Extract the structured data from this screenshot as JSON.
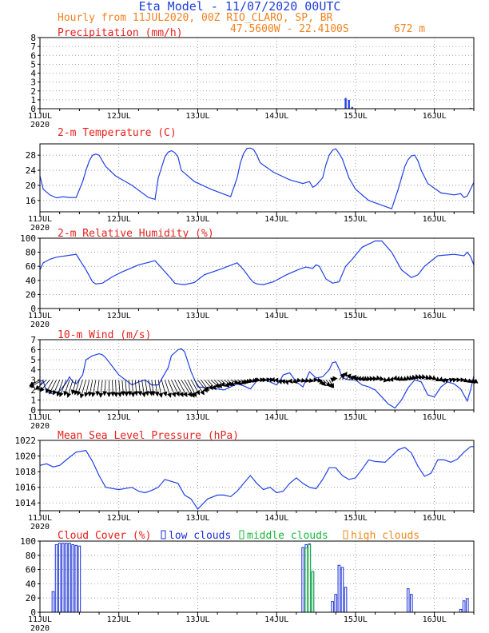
{
  "header": {
    "title": "Eta Model - 11/07/2020 00UTC",
    "subtitle": "Hourly from 11JUL2020, 00Z  RIO_CLARO, SP, BR",
    "coords": "47.5600W - 22.4100S",
    "elevation": "672  m"
  },
  "colors": {
    "title": "#1f3fd6",
    "header": "#f0821e",
    "panel_title": "#e8201c",
    "line": "#2040e8",
    "low": "#1a2fd8",
    "middle": "#18b83a",
    "high": "#ef8a20"
  },
  "x_axis": {
    "range_hours": [
      0,
      132
    ],
    "tick_hours": [
      0,
      24,
      48,
      72,
      96,
      120
    ],
    "tick_labels": [
      "11JUL",
      "12JUL",
      "13JUL",
      "14JUL",
      "15JUL",
      "16JUL"
    ],
    "year_label": "2020"
  },
  "chart_data": [
    {
      "type": "bar",
      "title": "Precipitation (mm/h)",
      "ylim": [
        0,
        8
      ],
      "yticks": [
        "0",
        "1",
        "2",
        "3",
        "4",
        "5",
        "6",
        "7",
        "8"
      ],
      "x_hours": [
        93,
        94,
        95,
        131
      ],
      "values": [
        1.2,
        1.0,
        0.2,
        0.1
      ]
    },
    {
      "type": "line",
      "title": "2-m Temperature (C)",
      "ylim": [
        13,
        31
      ],
      "yticks": [
        "16",
        "20",
        "24",
        "28"
      ],
      "x_hours": [
        0,
        1,
        3,
        5,
        7,
        9,
        11,
        13,
        14,
        15,
        16,
        17,
        18,
        20,
        23,
        28,
        33,
        35,
        36,
        38,
        39,
        40,
        41,
        42,
        43,
        47,
        52,
        58,
        60,
        61,
        62,
        63,
        64,
        65,
        66,
        67,
        71,
        76,
        80,
        82,
        83,
        84,
        86,
        87,
        88,
        89,
        90,
        91,
        92,
        94,
        96,
        100,
        107,
        109,
        111,
        112,
        113,
        114,
        115,
        116,
        118,
        122,
        126,
        128,
        129,
        130,
        131,
        132
      ],
      "values": [
        22.5,
        19,
        17.5,
        16.7,
        17,
        16.8,
        16.8,
        21,
        24,
        26.5,
        28,
        28.3,
        28,
        25,
        22.5,
        20,
        16.8,
        16.3,
        22,
        27.5,
        28.8,
        29.2,
        28.7,
        27.5,
        24,
        21,
        19,
        17,
        22,
        26,
        28.5,
        29.8,
        29.9,
        29.5,
        28,
        26,
        23.5,
        21.5,
        20.5,
        21,
        19.5,
        20,
        22,
        25.5,
        28,
        29.3,
        29.7,
        28.5,
        27,
        22,
        19,
        16,
        13.8,
        19,
        25,
        26.8,
        27.8,
        28,
        26.5,
        24,
        20.5,
        18,
        17.5,
        17.8,
        16.8,
        17.2,
        19,
        20.8
      ]
    },
    {
      "type": "line",
      "title": "2-m Relative Humidity (%)",
      "ylim": [
        0,
        100
      ],
      "yticks": [
        "0",
        "20",
        "40",
        "60",
        "80",
        "100"
      ],
      "x_hours": [
        0,
        1,
        3,
        5,
        8,
        11,
        14,
        16,
        17,
        19,
        22,
        25,
        30,
        35,
        40,
        41,
        42,
        44,
        47,
        50,
        55,
        60,
        62,
        64,
        65,
        66,
        68,
        71,
        75,
        79,
        81,
        83,
        84,
        85,
        87,
        89,
        91,
        93,
        95,
        98,
        102,
        104,
        107,
        110,
        113,
        115,
        117,
        121,
        126,
        129,
        130,
        131,
        132
      ],
      "values": [
        55,
        65,
        70,
        73,
        75,
        77,
        55,
        38,
        35,
        36,
        45,
        52,
        62,
        68,
        42,
        36,
        35,
        34,
        37,
        48,
        56,
        65,
        55,
        42,
        37,
        35,
        34,
        38,
        48,
        56,
        59,
        57,
        62,
        60,
        42,
        36,
        38,
        60,
        70,
        87,
        96,
        96,
        80,
        55,
        44,
        48,
        60,
        75,
        77,
        75,
        80,
        74,
        62
      ]
    },
    {
      "type": "line",
      "title": "10-m Wind (m/s)",
      "ylim": [
        0,
        7
      ],
      "yticks": [
        "0",
        "1",
        "2",
        "3",
        "4",
        "5",
        "6",
        "7"
      ],
      "x_hours": [
        0,
        1,
        2,
        4,
        6,
        8,
        9,
        10,
        11,
        13,
        14,
        16,
        18,
        19,
        20,
        24,
        28,
        30,
        32,
        34,
        36,
        39,
        40,
        42,
        43,
        44,
        46,
        48,
        52,
        56,
        60,
        62,
        64,
        66,
        68,
        70,
        72,
        73,
        74,
        76,
        78,
        80,
        82,
        84,
        86,
        88,
        89,
        90,
        91,
        92,
        94,
        96,
        98,
        100,
        102,
        104,
        106,
        108,
        110,
        112,
        114,
        116,
        118,
        120,
        122,
        124,
        126,
        128,
        130,
        131,
        132
      ],
      "values": [
        2.5,
        2.9,
        1.8,
        1.6,
        1.9,
        2.7,
        3.3,
        2.8,
        2.6,
        3.5,
        5.0,
        5.4,
        5.6,
        5.5,
        5.2,
        3.5,
        2.5,
        2.8,
        3.0,
        2.5,
        2.5,
        4.2,
        5.4,
        6.0,
        6.1,
        5.8,
        3.8,
        2.3,
        2.2,
        2.0,
        2.6,
        2.4,
        2.1,
        2.9,
        3.0,
        2.8,
        2.5,
        2.9,
        3.5,
        3.7,
        2.8,
        2.3,
        3.8,
        3.2,
        3.3,
        4.0,
        4.7,
        4.8,
        4.1,
        3.2,
        3.0,
        3.0,
        2.5,
        2.3,
        2.0,
        1.3,
        0.6,
        0.2,
        1.0,
        2.2,
        3.0,
        2.8,
        1.5,
        1.3,
        2.3,
        2.8,
        2.6,
        2.1,
        0.9,
        2.0,
        3.4
      ],
      "barb_hours": [
        0,
        1,
        2,
        3,
        4,
        5,
        6,
        7,
        8,
        9,
        10,
        11,
        12,
        13,
        14,
        15,
        16,
        17,
        18,
        19,
        20,
        21,
        22,
        23,
        24,
        25,
        26,
        27,
        28,
        29,
        30,
        31,
        32,
        33,
        34,
        35,
        36,
        37,
        38,
        39,
        40,
        41,
        42,
        43,
        44,
        45,
        46,
        47,
        48,
        49,
        50,
        51,
        52,
        53,
        54,
        55,
        56,
        57,
        58,
        59,
        60,
        61,
        62,
        63,
        64,
        65,
        66,
        67,
        68,
        69,
        70,
        71,
        72,
        73,
        74,
        75,
        76,
        77,
        78,
        79,
        80,
        81,
        82,
        83,
        84,
        85,
        86,
        87,
        88,
        89,
        90,
        91,
        92,
        93,
        94,
        95,
        96,
        97,
        98,
        99,
        100,
        101,
        102,
        103,
        104,
        105,
        106,
        107,
        108,
        109,
        110,
        111,
        112,
        113,
        114,
        115,
        116,
        117,
        118,
        119,
        120,
        121,
        122,
        123,
        124,
        125,
        126,
        127,
        128,
        129,
        130,
        131,
        132
      ],
      "barb_u": [
        -1.6,
        -2.1,
        -1.7,
        -1.5,
        -1.1,
        -1.1,
        -1.0,
        -0.9,
        -1.0,
        -0.8,
        -0.8,
        -0.6,
        -0.7,
        -0.8,
        -0.8,
        -0.6,
        -0.5,
        -0.5,
        -0.3,
        -0.3,
        -0.2,
        -0.0,
        0.1,
        0.1,
        0.2,
        0.2,
        0.2,
        0.2,
        0.2,
        0.2,
        0.3,
        0.4,
        0.4,
        0.5,
        0.3,
        0.4,
        0.5,
        0.7,
        0.9,
        1.1,
        1.2,
        1.3,
        1.4,
        1.6,
        1.5,
        1.3,
        1.3,
        1.5,
        1.5,
        1.2,
        1.3,
        1.3,
        1.3,
        1.2,
        1.2,
        1.3,
        1.2,
        1.1,
        1.2,
        1.2,
        1.3,
        1.1,
        1.0,
        0.9,
        1.0,
        0.8,
        0.5,
        0.6,
        0.5,
        0.6,
        0.6,
        0.2,
        0.2,
        0.2,
        0.2,
        0.2,
        0.4,
        0.6,
        0.7,
        0.9,
        1.0,
        1.1,
        1.3,
        1.4,
        1.2,
        1.0,
        1.2,
        1.0,
        0.7,
        0.0,
        -0.4,
        0.8,
        0.7,
        0.8,
        0.8,
        0.6,
        0.4,
        0.3,
        0.2,
        0.0,
        -0.2,
        -0.3,
        -0.3,
        -0.2,
        -0.2,
        -0.1,
        0.1,
        0.2,
        0.2,
        0.1,
        0.0,
        -0.0,
        -0.1,
        -0.2,
        -0.3,
        -0.3,
        -0.3,
        -0.3,
        -0.2,
        -0.2,
        -0.1,
        0.0,
        0.1,
        0.2,
        0.2,
        0.4,
        0.4,
        0.5,
        0.6,
        0.6,
        0.7,
        0.7,
        0.6
      ],
      "barb_v": [
        -0.9,
        -1.1,
        -1.5,
        -1.8,
        -2.0,
        -2.2,
        -2.3,
        -2.5,
        -2.6,
        -2.4,
        -2.7,
        -2.2,
        -2.3,
        -2.4,
        -2.8,
        -2.6,
        -2.5,
        -2.6,
        -2.4,
        -2.7,
        -2.4,
        -2.6,
        -2.5,
        -2.6,
        -2.6,
        -2.4,
        -2.5,
        -2.4,
        -2.6,
        -2.4,
        -2.4,
        -2.6,
        -2.4,
        -2.4,
        -2.4,
        -2.5,
        -2.7,
        -2.5,
        -2.7,
        -2.6,
        -2.5,
        -2.6,
        -2.6,
        -2.6,
        -2.7,
        -2.6,
        -2.3,
        -2.3,
        -1.9,
        -1.7,
        -1.5,
        -1.5,
        -1.2,
        -1.2,
        -1.0,
        -1.1,
        -0.9,
        -0.9,
        -0.6,
        -0.7,
        -0.6,
        -0.5,
        -0.4,
        -0.3,
        -0.2,
        -0.1,
        -0.1,
        -0.0,
        -0.0,
        0.1,
        0.0,
        -0.3,
        -0.4,
        -0.6,
        -0.6,
        -0.7,
        -0.5,
        -0.5,
        -0.2,
        -0.2,
        -0.2,
        -0.2,
        0.0,
        -0.1,
        -0.6,
        -0.9,
        -1.0,
        -1.2,
        -1.2,
        -0.3,
        0.5,
        1.0,
        1.2,
        0.9,
        0.6,
        0.7,
        0.5,
        0.5,
        0.5,
        0.5,
        0.5,
        0.5,
        0.5,
        0.6,
        0.5,
        0.3,
        0.4,
        0.4,
        0.6,
        0.5,
        0.5,
        0.5,
        0.6,
        0.6,
        0.7,
        0.8,
        0.8,
        0.8,
        0.7,
        0.7,
        0.6,
        0.4,
        0.4,
        0.2,
        0.1,
        0.1,
        0.1,
        0.0,
        -0.0,
        -0.3,
        -0.4,
        -0.5,
        -0.5
      ]
    },
    {
      "type": "line",
      "title": "Mean Sea Level Pressure (hPa)",
      "ylim": [
        1013,
        1022
      ],
      "yticks": [
        "1014",
        "1016",
        "1018",
        "1020",
        "1022"
      ],
      "x_hours": [
        0,
        2,
        4,
        6,
        8,
        11,
        14,
        16,
        18,
        20,
        24,
        28,
        30,
        32,
        34,
        36,
        38,
        42,
        44,
        46,
        48,
        51,
        54,
        56,
        58,
        60,
        62,
        64,
        66,
        68,
        70,
        72,
        74,
        76,
        78,
        80,
        82,
        84,
        86,
        88,
        90,
        92,
        94,
        96,
        98,
        100,
        102,
        105,
        107,
        109,
        111,
        113,
        115,
        117,
        119,
        121,
        123,
        125,
        127,
        129,
        131,
        132
      ],
      "values": [
        1018.8,
        1019.0,
        1018.6,
        1018.8,
        1019.5,
        1020.5,
        1020.7,
        1019.3,
        1017.5,
        1016.0,
        1015.7,
        1016.0,
        1015.5,
        1015.3,
        1015.6,
        1016.0,
        1017.0,
        1016.5,
        1015.0,
        1014.5,
        1013.2,
        1014.5,
        1015.0,
        1015.0,
        1014.8,
        1015.5,
        1016.5,
        1017.5,
        1016.5,
        1015.7,
        1016.0,
        1015.3,
        1015.5,
        1016.5,
        1017.2,
        1016.5,
        1016.0,
        1015.8,
        1017.0,
        1018.5,
        1018.5,
        1017.5,
        1017.0,
        1017.2,
        1018.3,
        1019.5,
        1019.3,
        1019.2,
        1020.0,
        1020.8,
        1021.1,
        1020.4,
        1018.7,
        1017.4,
        1017.8,
        1019.5,
        1019.5,
        1019.2,
        1019.6,
        1020.5,
        1021.2,
        1021.2
      ]
    },
    {
      "type": "bar",
      "title": "Cloud Cover (%)",
      "ylim": [
        0,
        100
      ],
      "yticks": [
        "0",
        "20",
        "40",
        "60",
        "80",
        "100"
      ],
      "legend": [
        "low clouds",
        "middle clouds",
        "high clouds"
      ],
      "series": [
        {
          "name": "low clouds",
          "x_hours": [
            4,
            5,
            6,
            7,
            8,
            9,
            10,
            11,
            12,
            80,
            81,
            82,
            83,
            89,
            90,
            91,
            92,
            93,
            112,
            113,
            128,
            129,
            130
          ],
          "values": [
            29,
            95,
            97,
            97,
            97,
            97,
            95,
            94,
            93,
            91,
            95,
            96,
            57,
            15,
            25,
            66,
            63,
            35,
            33,
            25,
            4,
            16,
            19
          ]
        },
        {
          "name": "middle clouds",
          "x_hours": [
            81,
            82,
            83
          ],
          "values": [
            90,
            95,
            57
          ]
        },
        {
          "name": "high clouds",
          "x_hours": [],
          "values": []
        }
      ]
    }
  ]
}
